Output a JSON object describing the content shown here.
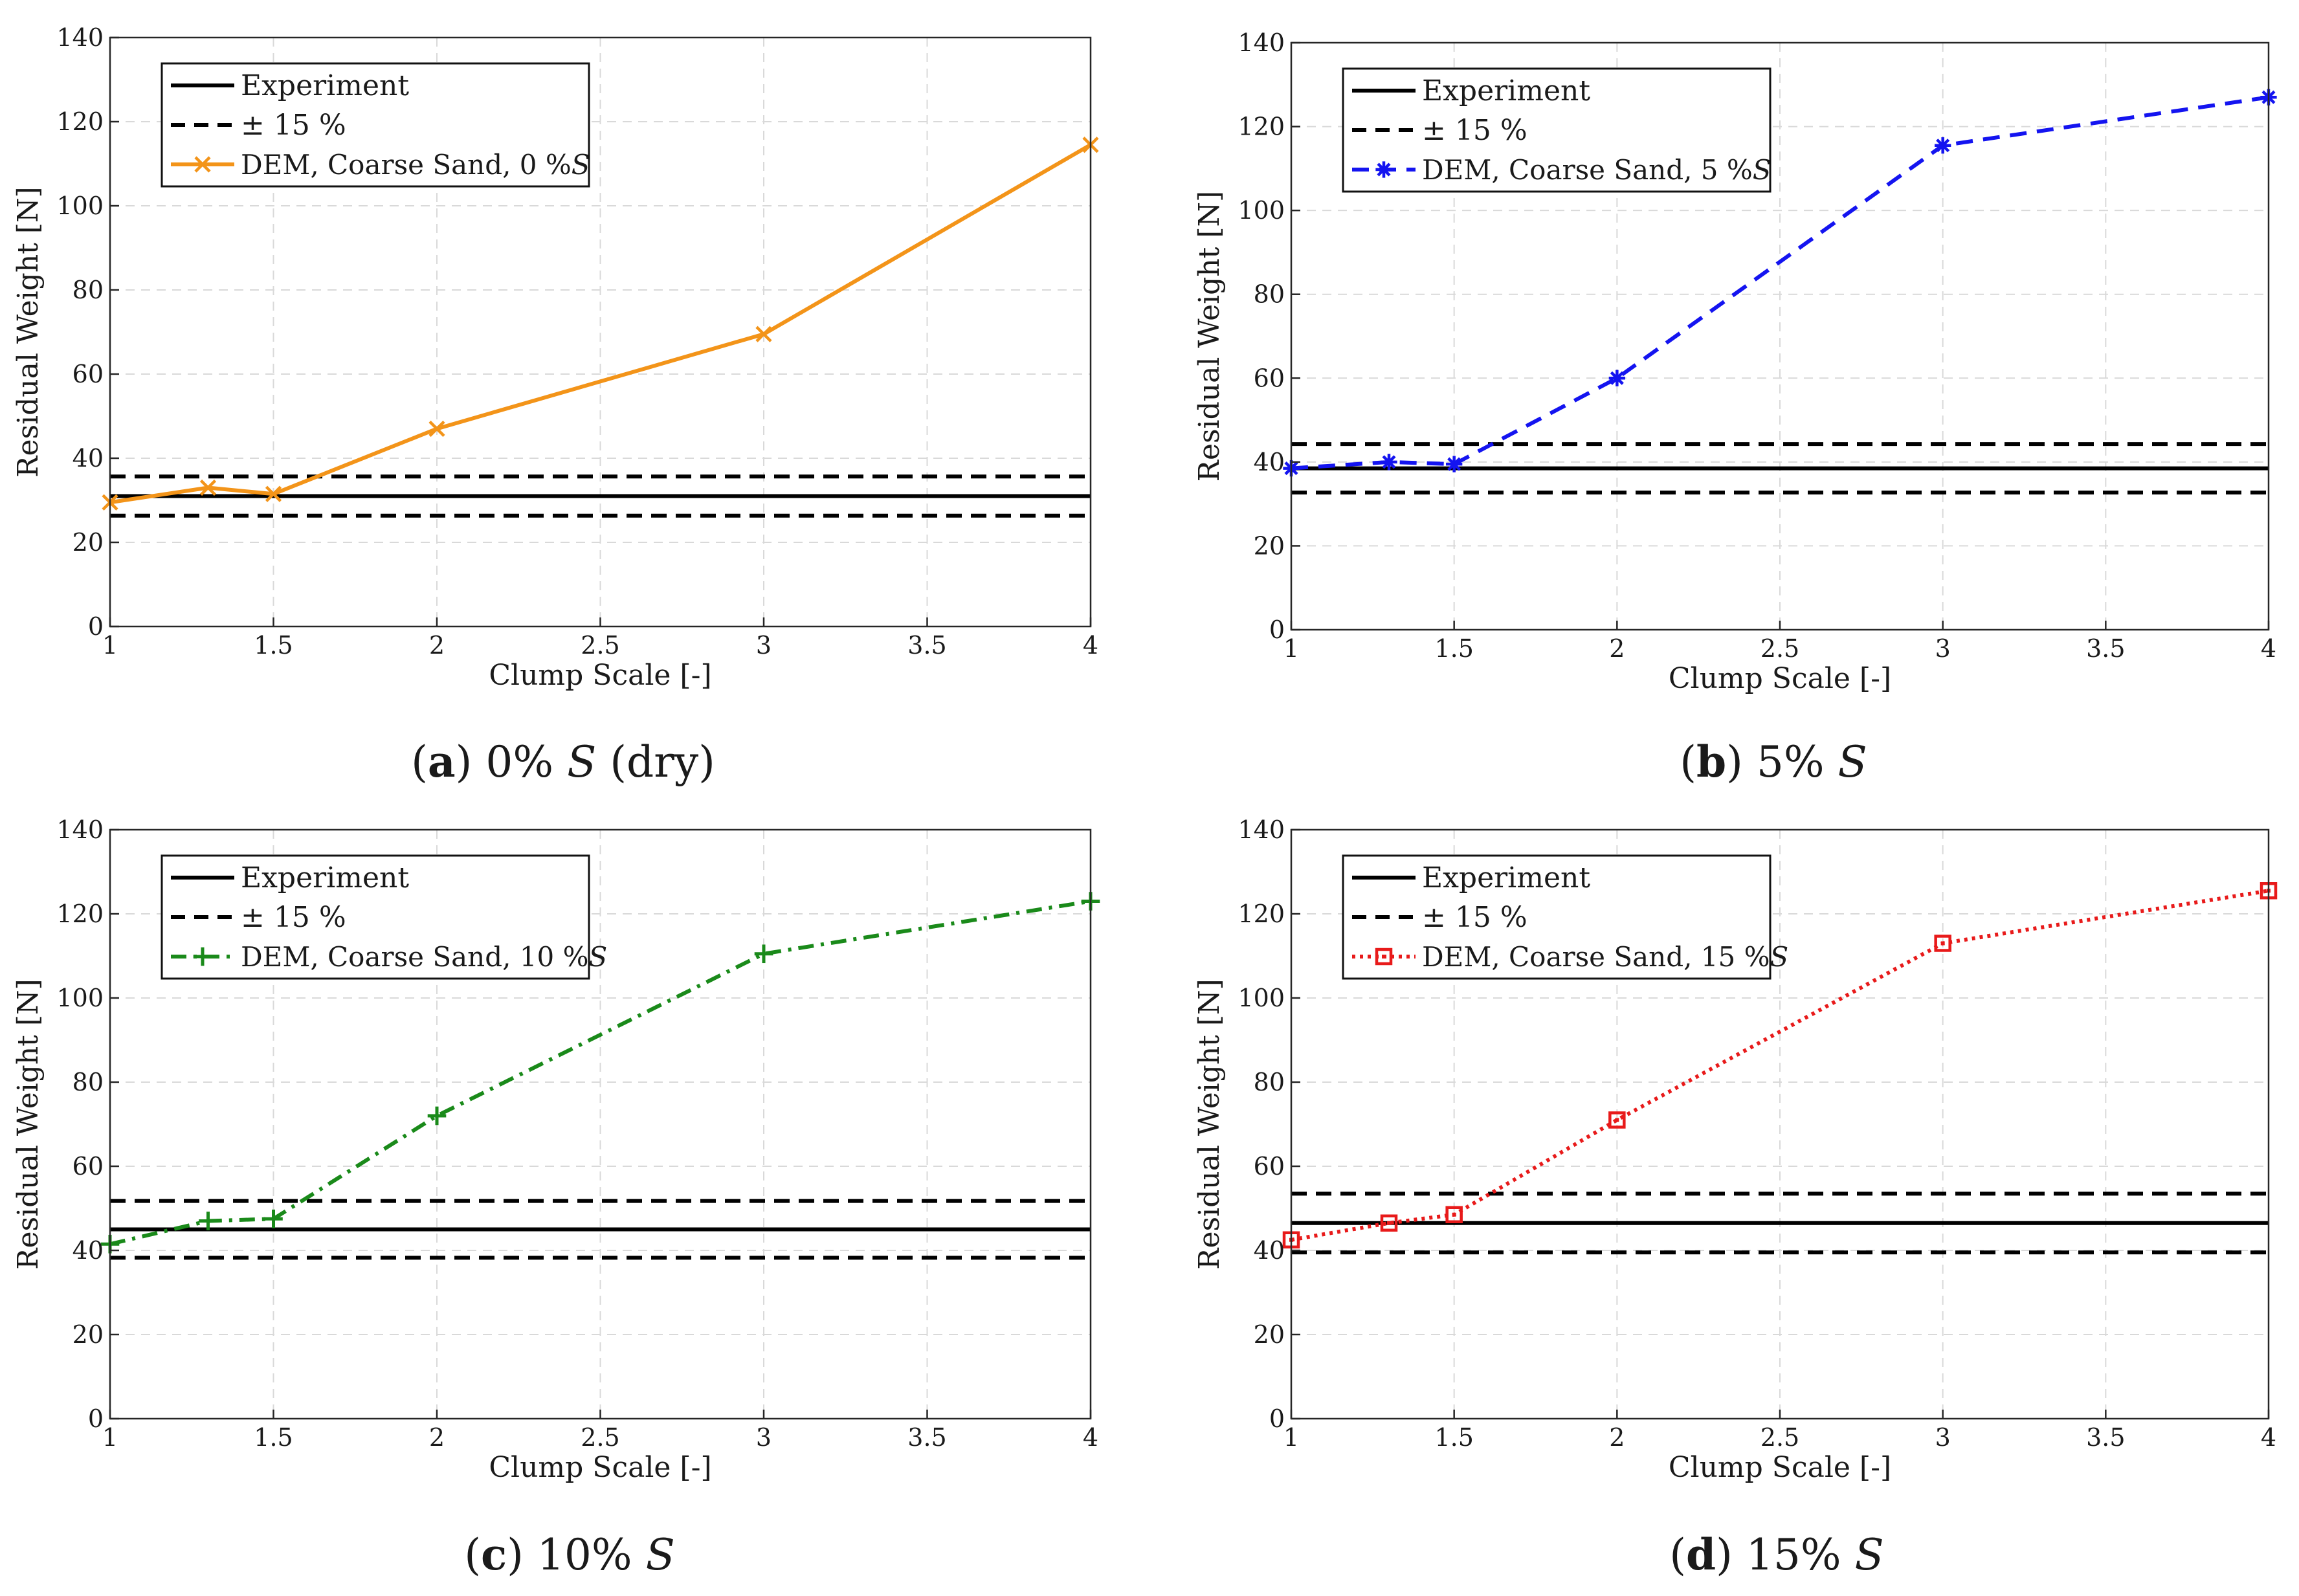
{
  "figure": {
    "panels": [
      {
        "label": "a",
        "caption_value": "0%",
        "caption_suffix": "(dry)",
        "series_color": "#f39419",
        "marker": "x",
        "dash": "solid"
      },
      {
        "label": "b",
        "caption_value": "5%",
        "caption_suffix": "",
        "series_color": "#1414f0",
        "marker": "asterisk",
        "dash": "dashed"
      },
      {
        "label": "c",
        "caption_value": "10%",
        "caption_suffix": "",
        "series_color": "#1a8a1a",
        "marker": "plus",
        "dash": "dashdot"
      },
      {
        "label": "d",
        "caption_value": "15%",
        "caption_suffix": "",
        "series_color": "#e81a1a",
        "marker": "square",
        "dash": "dotted"
      }
    ],
    "caption_symbol": "S",
    "colors": {
      "experiment": "#000000",
      "grid": "#d9d9d9",
      "axis": "#262626"
    }
  },
  "chart_data": [
    {
      "type": "line",
      "title": "",
      "xlabel": "Clump Scale [-]",
      "ylabel": "Residual Weight [N]",
      "xlim": [
        1,
        4
      ],
      "ylim": [
        0,
        140
      ],
      "xticks": [
        1,
        1.5,
        2,
        2.5,
        3,
        3.5,
        4
      ],
      "yticks": [
        0,
        20,
        40,
        60,
        80,
        100,
        120,
        140
      ],
      "grid": true,
      "legend_position": "top-left",
      "experiment": 31,
      "band_pct": 15,
      "series": [
        {
          "name": "DEM, Coarse Sand, 0 %S",
          "legend_text": "DEM, Coarse Sand, 0 %",
          "legend_sym": "S",
          "x": [
            1,
            1.3,
            1.5,
            2,
            3,
            4
          ],
          "y": [
            29.5,
            33,
            31.5,
            47,
            69.5,
            114.5
          ]
        }
      ],
      "legend": [
        "Experiment",
        "± 15 %",
        "DEM, Coarse Sand, 0 %S"
      ]
    },
    {
      "type": "line",
      "title": "",
      "xlabel": "Clump Scale [-]",
      "ylabel": "Residual Weight [N]",
      "xlim": [
        1,
        4
      ],
      "ylim": [
        0,
        140
      ],
      "xticks": [
        1,
        1.5,
        2,
        2.5,
        3,
        3.5,
        4
      ],
      "yticks": [
        0,
        20,
        40,
        60,
        80,
        100,
        120,
        140
      ],
      "grid": true,
      "legend_position": "top-left",
      "experiment": 38.5,
      "band_pct": 15,
      "series": [
        {
          "name": "DEM, Coarse Sand, 5 %S",
          "legend_text": "DEM, Coarse Sand, 5 %",
          "legend_sym": "S",
          "x": [
            1,
            1.3,
            1.5,
            2,
            3,
            4
          ],
          "y": [
            38.5,
            40,
            39.5,
            60,
            115.5,
            127
          ]
        }
      ],
      "legend": [
        "Experiment",
        "± 15 %",
        "DEM, Coarse Sand, 5 %S"
      ]
    },
    {
      "type": "line",
      "title": "",
      "xlabel": "Clump Scale [-]",
      "ylabel": "Residual Weight [N]",
      "xlim": [
        1,
        4
      ],
      "ylim": [
        0,
        140
      ],
      "xticks": [
        1,
        1.5,
        2,
        2.5,
        3,
        3.5,
        4
      ],
      "yticks": [
        0,
        20,
        40,
        60,
        80,
        100,
        120,
        140
      ],
      "grid": true,
      "legend_position": "top-left",
      "experiment": 45,
      "band_pct": 15,
      "series": [
        {
          "name": "DEM, Coarse Sand, 10 %S",
          "legend_text": "DEM, Coarse Sand, 10 %",
          "legend_sym": "S",
          "x": [
            1,
            1.3,
            1.5,
            2,
            3,
            4
          ],
          "y": [
            41.5,
            47,
            47.5,
            72,
            110.5,
            123
          ]
        }
      ],
      "legend": [
        "Experiment",
        "± 15 %",
        "DEM, Coarse Sand, 10 %S"
      ]
    },
    {
      "type": "line",
      "title": "",
      "xlabel": "Clump Scale [-]",
      "ylabel": "Residual Weight [N]",
      "xlim": [
        1,
        4
      ],
      "ylim": [
        0,
        140
      ],
      "xticks": [
        1,
        1.5,
        2,
        2.5,
        3,
        3.5,
        4
      ],
      "yticks": [
        0,
        20,
        40,
        60,
        80,
        100,
        120,
        140
      ],
      "grid": true,
      "legend_position": "top-left",
      "experiment": 46.5,
      "band_pct": 15,
      "series": [
        {
          "name": "DEM, Coarse Sand, 15 %S",
          "legend_text": "DEM, Coarse Sand, 15 %",
          "legend_sym": "S",
          "x": [
            1,
            1.3,
            1.5,
            2,
            3,
            4
          ],
          "y": [
            42.5,
            46.5,
            48.5,
            71,
            113,
            125.5
          ]
        }
      ],
      "legend": [
        "Experiment",
        "± 15 %",
        "DEM, Coarse Sand, 15 %S"
      ]
    }
  ]
}
